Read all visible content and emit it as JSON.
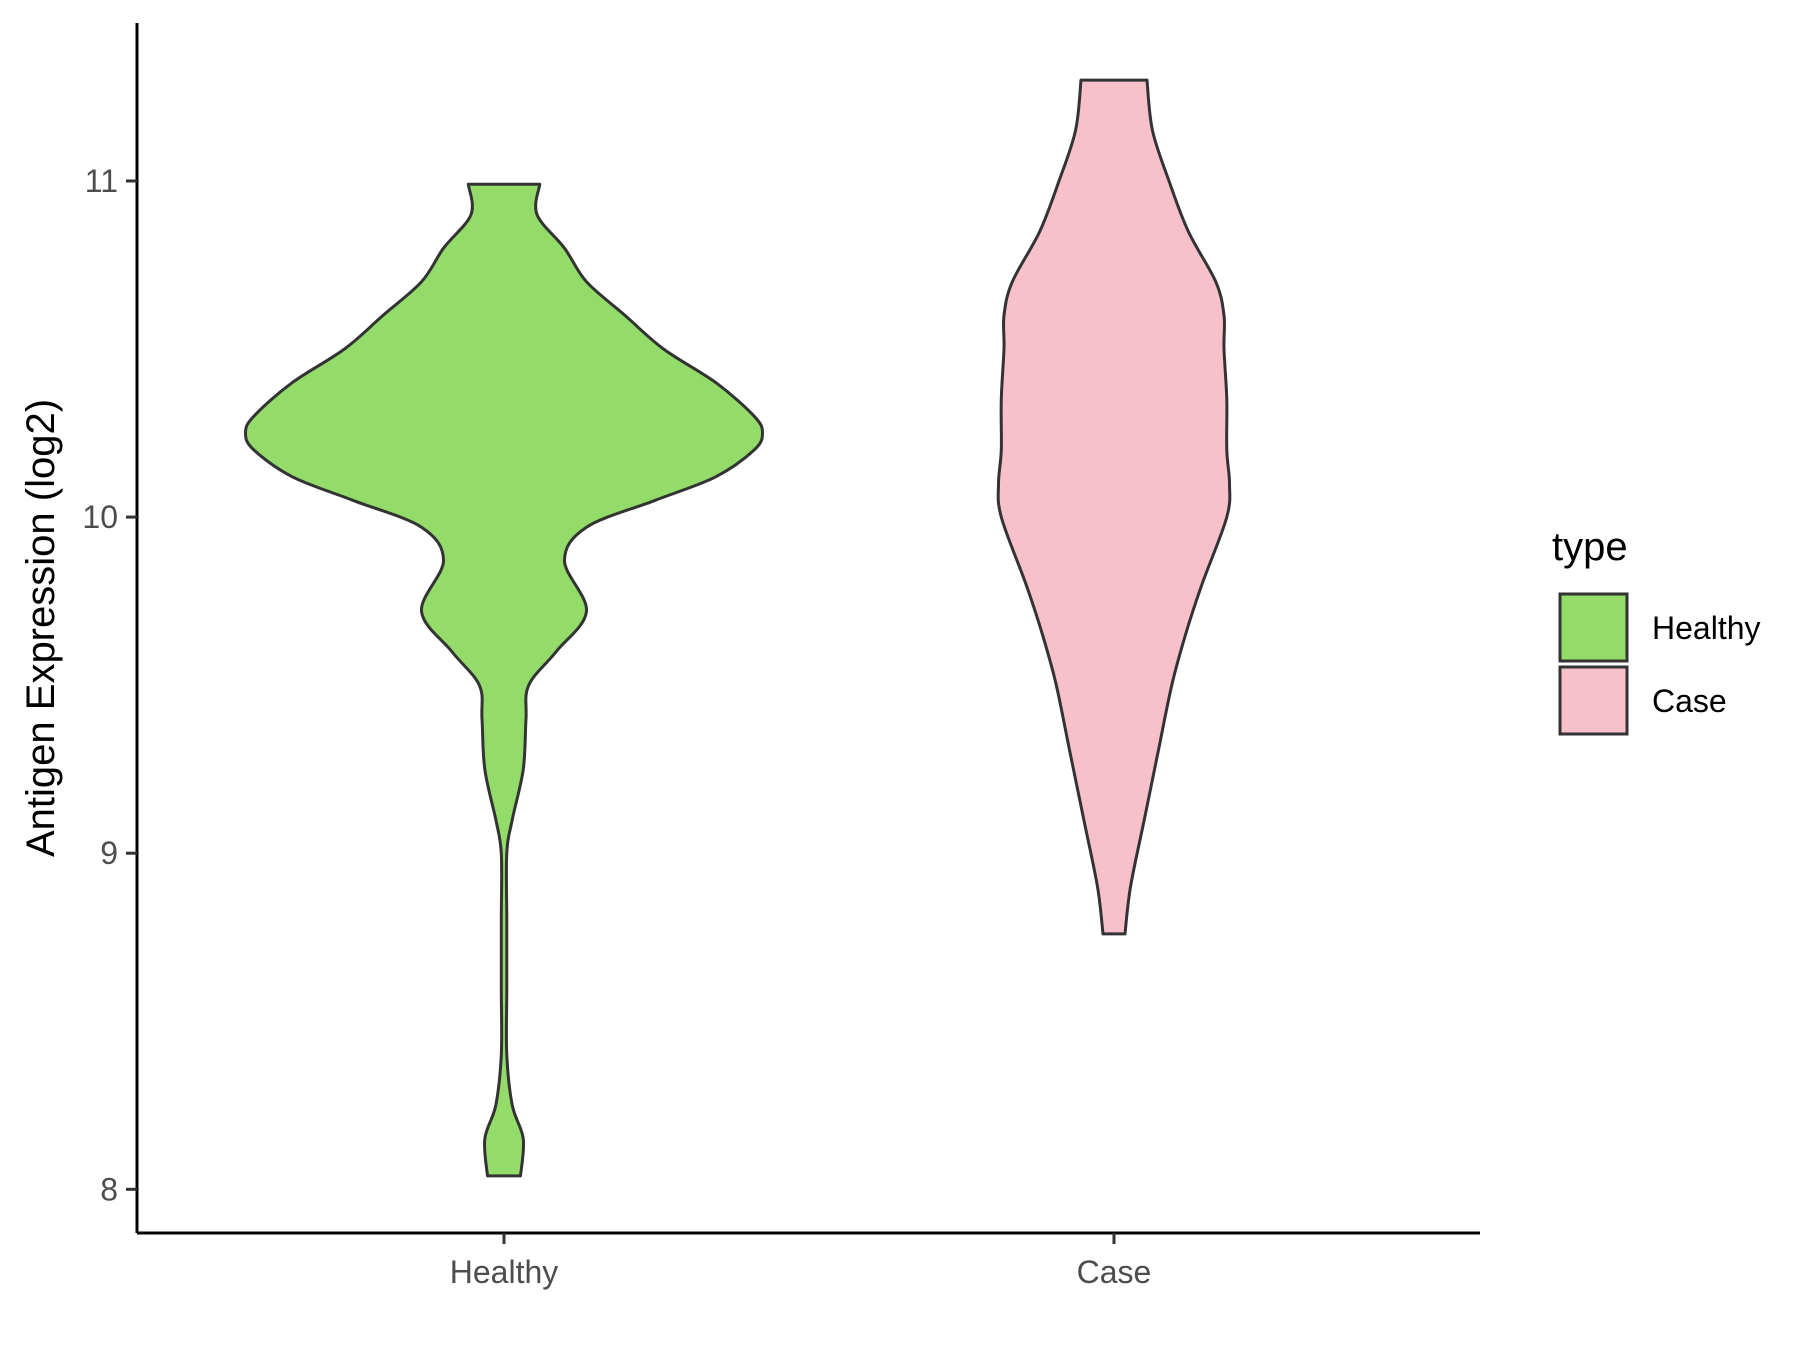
{
  "chart_data": {
    "type": "violin",
    "ylabel": "Antigen Expression (log2)",
    "xlabel": "",
    "categories": [
      "Healthy",
      "Case"
    ],
    "yticks": [
      8,
      9,
      10,
      11
    ],
    "ylim": [
      7.87,
      11.47
    ],
    "grid": false,
    "legend": {
      "title": "type",
      "position": "right",
      "entries": [
        {
          "label": "Healthy",
          "color": "#93dc6a"
        },
        {
          "label": "Case",
          "color": "#f8c0cb"
        }
      ]
    },
    "series": [
      {
        "name": "Healthy",
        "color": "#93dc6a",
        "min": 8.04,
        "max": 10.99,
        "density": [
          [
            8.04,
            0.06
          ],
          [
            8.15,
            0.07
          ],
          [
            8.25,
            0.03
          ],
          [
            8.4,
            0.01
          ],
          [
            8.6,
            0.01
          ],
          [
            8.8,
            0.01
          ],
          [
            9.0,
            0.01
          ],
          [
            9.1,
            0.03
          ],
          [
            9.25,
            0.07
          ],
          [
            9.4,
            0.08
          ],
          [
            9.5,
            0.09
          ],
          [
            9.6,
            0.19
          ],
          [
            9.72,
            0.3
          ],
          [
            9.87,
            0.22
          ],
          [
            9.97,
            0.3
          ],
          [
            10.05,
            0.55
          ],
          [
            10.12,
            0.77
          ],
          [
            10.2,
            0.91
          ],
          [
            10.25,
            0.94
          ],
          [
            10.3,
            0.91
          ],
          [
            10.4,
            0.77
          ],
          [
            10.5,
            0.58
          ],
          [
            10.6,
            0.44
          ],
          [
            10.7,
            0.3
          ],
          [
            10.8,
            0.22
          ],
          [
            10.9,
            0.12
          ],
          [
            10.99,
            0.13
          ]
        ]
      },
      {
        "name": "Case",
        "color": "#f8c0cb",
        "min": 8.76,
        "max": 11.3,
        "density": [
          [
            8.76,
            0.04
          ],
          [
            8.9,
            0.06
          ],
          [
            9.1,
            0.11
          ],
          [
            9.3,
            0.16
          ],
          [
            9.5,
            0.21
          ],
          [
            9.65,
            0.26
          ],
          [
            9.8,
            0.32
          ],
          [
            10.0,
            0.41
          ],
          [
            10.1,
            0.42
          ],
          [
            10.2,
            0.41
          ],
          [
            10.35,
            0.41
          ],
          [
            10.5,
            0.4
          ],
          [
            10.6,
            0.4
          ],
          [
            10.7,
            0.37
          ],
          [
            10.85,
            0.27
          ],
          [
            11.0,
            0.2
          ],
          [
            11.15,
            0.14
          ],
          [
            11.3,
            0.12
          ]
        ]
      }
    ]
  }
}
